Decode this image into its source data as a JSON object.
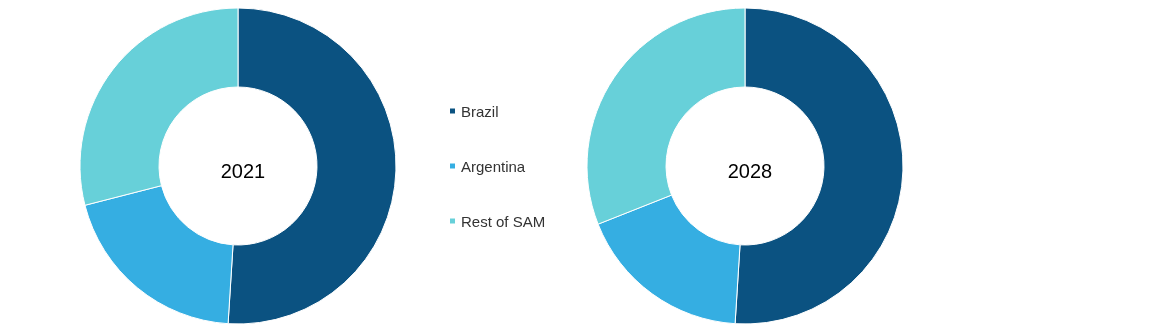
{
  "chart_data": [
    {
      "type": "donut",
      "title": "2021",
      "categories": [
        "Brazil",
        "Argentina",
        "Rest of SAM"
      ],
      "values": [
        51,
        20,
        29
      ],
      "colors": [
        "#0b5281",
        "#35aee2",
        "#67d0d9"
      ],
      "legend": "right"
    },
    {
      "type": "donut",
      "title": "2028",
      "categories": [
        null,
        null,
        null
      ],
      "values": [
        51,
        18,
        31
      ],
      "colors": [
        "#0b5281",
        "#35aee2",
        "#67d0d9"
      ]
    }
  ]
}
